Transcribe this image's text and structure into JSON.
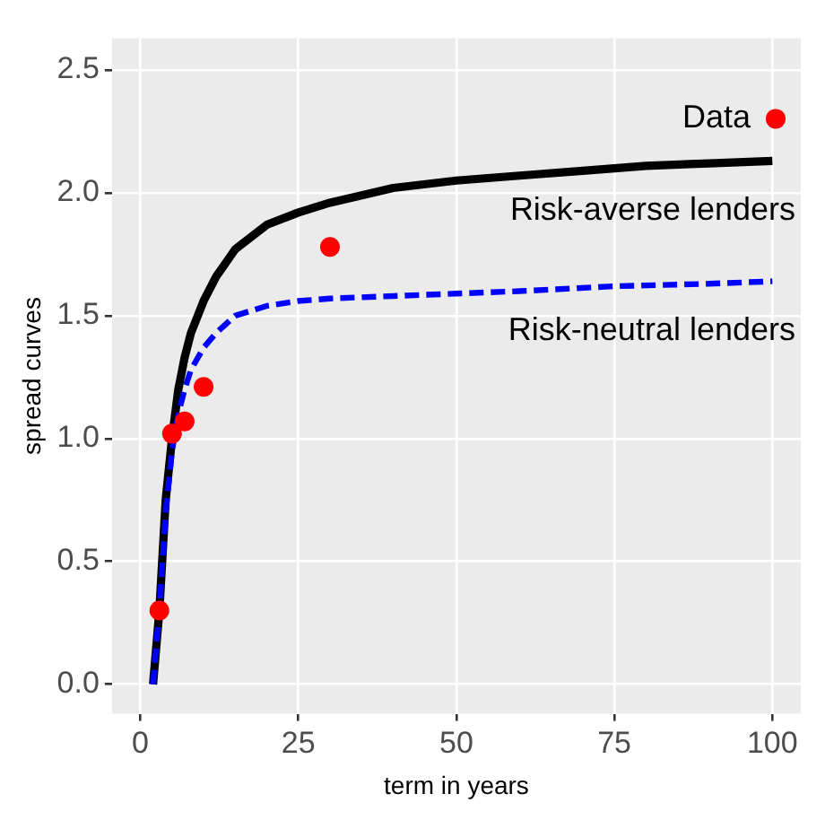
{
  "chart_data": {
    "type": "line",
    "xlabel": "term in years",
    "ylabel": "spread curves",
    "xlim": [
      -4.5,
      104.5
    ],
    "ylim": [
      -0.12,
      2.63
    ],
    "xticks": [
      0,
      25,
      50,
      75,
      100
    ],
    "yticks": [
      {
        "value": 0,
        "label": "0.0"
      },
      {
        "value": 0.5,
        "label": "0.5"
      },
      {
        "value": 1,
        "label": "1.0"
      },
      {
        "value": 1.5,
        "label": "1.5"
      },
      {
        "value": 2,
        "label": "2.0"
      },
      {
        "value": 2.5,
        "label": "2.5"
      }
    ],
    "grid": true,
    "legend": "top right",
    "series": [
      {
        "name": "Risk-averse lenders",
        "color": "#000000",
        "line_style": "solid",
        "marker": "none",
        "x": [
          2,
          3,
          4,
          5,
          6,
          7,
          8,
          10,
          12,
          15,
          20,
          25,
          30,
          35,
          40,
          50,
          60,
          70,
          80,
          90,
          100
        ],
        "values": [
          0,
          0.3,
          0.75,
          1.0,
          1.2,
          1.33,
          1.43,
          1.56,
          1.66,
          1.77,
          1.87,
          1.92,
          1.96,
          1.99,
          2.02,
          2.05,
          2.07,
          2.09,
          2.11,
          2.12,
          2.13
        ]
      },
      {
        "name": "Risk-neutral lenders",
        "color": "#0000ff",
        "line_style": "dashed",
        "marker": "none",
        "x": [
          2,
          3,
          4,
          5,
          6,
          7,
          8,
          10,
          12,
          15,
          20,
          25,
          30,
          40,
          50,
          60,
          75,
          90,
          100
        ],
        "values": [
          0,
          0.3,
          0.7,
          0.95,
          1.1,
          1.2,
          1.28,
          1.37,
          1.43,
          1.5,
          1.54,
          1.56,
          1.57,
          1.58,
          1.59,
          1.6,
          1.62,
          1.63,
          1.64
        ]
      },
      {
        "name": "Data",
        "type": "scatter",
        "color": "#ff0000",
        "marker": "circle",
        "x": [
          3,
          5,
          7,
          10,
          30
        ],
        "values": [
          0.3,
          1.02,
          1.07,
          1.21,
          1.78
        ]
      }
    ]
  }
}
